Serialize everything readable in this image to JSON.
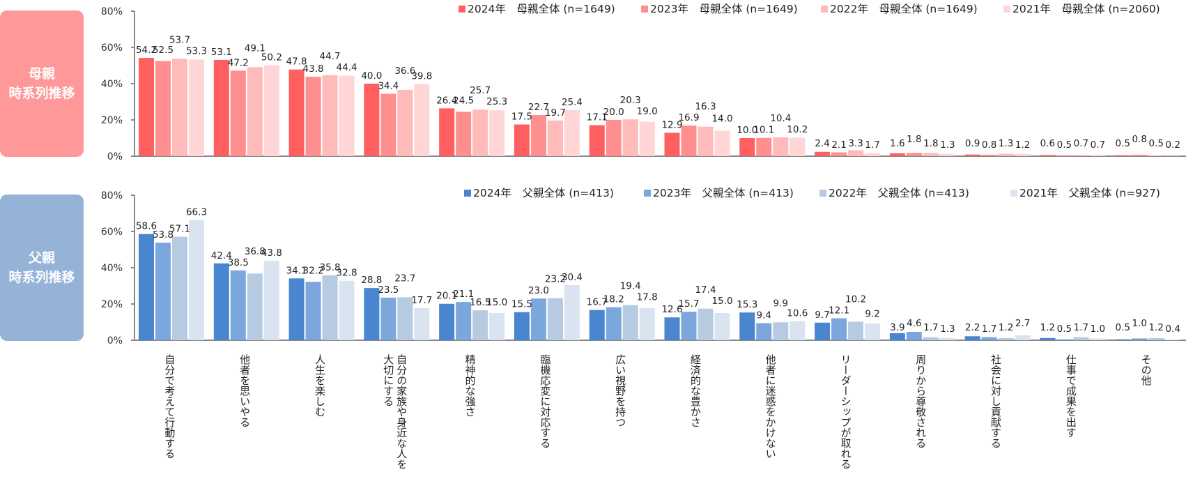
{
  "panels": {
    "mother": {
      "label": "母親\n時系列推移",
      "color": "#ff9999"
    },
    "father": {
      "label": "父親\n時系列推移",
      "color": "#95b3d7"
    }
  },
  "chart_data": [
    {
      "type": "bar",
      "title": "母親 時系列推移",
      "ylabel": "",
      "xlabel": "",
      "ylim": [
        0,
        80
      ],
      "yticks": [
        "0%",
        "20%",
        "40%",
        "60%",
        "80%"
      ],
      "legend_position": "top-right",
      "categories": [
        "自分で考えて行動する",
        "他者を思いやる",
        "人生を楽しむ",
        "自分の家族や身近な人を\n大切にする",
        "精神的な強さ",
        "臨機応変に対応する",
        "広い視野を持つ",
        "経済的な豊かさ",
        "他者に迷惑をかけない",
        "リーダーシップが取れる",
        "周りから尊敬される",
        "社会に対し貢献する",
        "仕事で成果を出す",
        "その他"
      ],
      "series": [
        {
          "name": "2024年　母親全体 (n=1649)",
          "color": "#ff5f5f",
          "values": [
            54.2,
            53.1,
            47.8,
            40.0,
            26.4,
            17.5,
            17.1,
            12.9,
            10.0,
            2.4,
            1.6,
            0.9,
            0.6,
            0.5
          ]
        },
        {
          "name": "2023年　母親全体 (n=1649)",
          "color": "#ff8f8f",
          "values": [
            52.5,
            47.2,
            43.8,
            34.4,
            24.5,
            22.7,
            20.0,
            16.9,
            10.1,
            2.1,
            1.8,
            0.8,
            0.5,
            0.8
          ]
        },
        {
          "name": "2022年　母親全体 (n=1649)",
          "color": "#ffbaba",
          "values": [
            53.7,
            49.1,
            44.7,
            36.6,
            25.7,
            19.7,
            20.3,
            16.3,
            10.4,
            3.3,
            1.8,
            1.3,
            0.7,
            0.5
          ]
        },
        {
          "name": "2021年　母親全体 (n=2060)",
          "color": "#ffd5d5",
          "values": [
            53.3,
            50.2,
            44.4,
            39.8,
            25.3,
            25.4,
            19.0,
            14.0,
            10.2,
            1.7,
            1.3,
            1.2,
            0.7,
            0.2
          ]
        }
      ]
    },
    {
      "type": "bar",
      "title": "父親 時系列推移",
      "ylabel": "",
      "xlabel": "",
      "ylim": [
        0,
        80
      ],
      "yticks": [
        "0%",
        "20%",
        "40%",
        "60%",
        "80%"
      ],
      "legend_position": "top-right",
      "categories": [
        "自分で考えて行動する",
        "他者を思いやる",
        "人生を楽しむ",
        "自分の家族や身近な人を\n大切にする",
        "精神的な強さ",
        "臨機応変に対応する",
        "広い視野を持つ",
        "経済的な豊かさ",
        "他者に迷惑をかけない",
        "リーダーシップが取れる",
        "周りから尊敬される",
        "社会に対し貢献する",
        "仕事で成果を出す",
        "その他"
      ],
      "series": [
        {
          "name": "2024年　父親全体 (n=413)",
          "color": "#4a86d0",
          "values": [
            58.6,
            42.4,
            34.1,
            28.8,
            20.1,
            15.5,
            16.7,
            12.6,
            15.3,
            9.7,
            3.9,
            2.2,
            1.2,
            0.5
          ]
        },
        {
          "name": "2023年　父親全体 (n=413)",
          "color": "#7ba7dc",
          "values": [
            53.8,
            38.5,
            32.2,
            23.5,
            21.1,
            23.0,
            18.2,
            15.7,
            9.4,
            12.1,
            4.6,
            1.7,
            0.5,
            1.0
          ]
        },
        {
          "name": "2022年　父親全体 (n=413)",
          "color": "#b6cae2",
          "values": [
            57.1,
            36.8,
            35.8,
            23.7,
            16.5,
            23.2,
            19.4,
            17.4,
            9.9,
            10.2,
            1.7,
            1.2,
            1.7,
            1.2
          ]
        },
        {
          "name": "2021年　父親全体 (n=927)",
          "color": "#dae4f0",
          "values": [
            66.3,
            43.8,
            32.8,
            17.7,
            15.0,
            30.4,
            17.8,
            15.0,
            10.6,
            9.2,
            1.3,
            2.7,
            1.0,
            0.4
          ]
        }
      ]
    }
  ]
}
